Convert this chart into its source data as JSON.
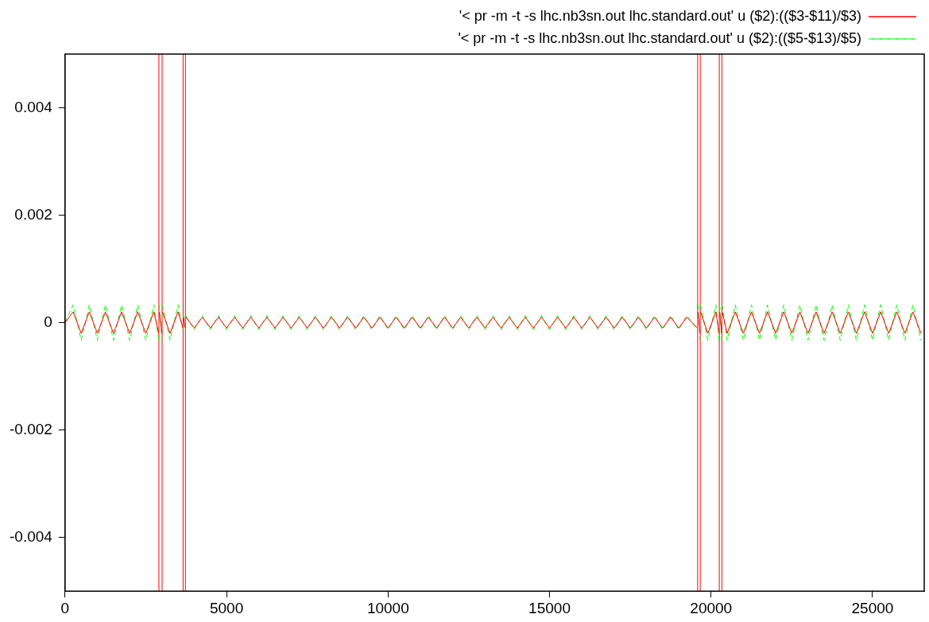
{
  "chart_data": {
    "type": "line",
    "x": [
      0,
      250,
      500,
      750,
      1000,
      1250,
      1500,
      1750,
      2000,
      2250,
      2500,
      2750,
      2900,
      2905,
      2910,
      2915,
      3000,
      3005,
      3010,
      3015,
      3250,
      3500,
      3650,
      3655,
      3660,
      3665,
      3720,
      3725,
      3730,
      3735,
      4000,
      4250,
      4500,
      4750,
      5000,
      5250,
      5500,
      5750,
      6000,
      6250,
      6500,
      6750,
      7000,
      7250,
      7500,
      7750,
      8000,
      8250,
      8500,
      8750,
      9000,
      9250,
      9500,
      9750,
      10000,
      10250,
      10500,
      10750,
      11000,
      11250,
      11500,
      11750,
      12000,
      12250,
      12500,
      12750,
      13000,
      13250,
      13500,
      13750,
      14000,
      14250,
      14500,
      14750,
      15000,
      15250,
      15500,
      15750,
      16000,
      16250,
      16500,
      16750,
      17000,
      17250,
      17500,
      17750,
      18000,
      18250,
      18500,
      18750,
      19000,
      19250,
      19580,
      19585,
      19590,
      19595,
      19660,
      19665,
      19670,
      19675,
      19900,
      20150,
      20250,
      20255,
      20260,
      20265,
      20330,
      20335,
      20340,
      20345,
      20500,
      20750,
      21000,
      21250,
      21500,
      21750,
      22000,
      22250,
      22500,
      22750,
      23000,
      23250,
      23500,
      23750,
      24000,
      24250,
      24500,
      24750,
      25000,
      25250,
      25500,
      25750,
      26000,
      26250,
      26500
    ],
    "series": [
      {
        "name": "'< pr -m -t -s lhc.nb3sn.out lhc.standard.out' u ($2):(($3-$11)/$3)",
        "color": "#ff0000",
        "line_style": "solid",
        "values": [
          0,
          0.0002,
          -0.0002,
          0.0002,
          -0.0002,
          0.0002,
          -0.0002,
          0.0002,
          -0.0002,
          0.0002,
          -0.0002,
          0.0002,
          -0.0002,
          null,
          null,
          0.0002,
          -0.0002,
          null,
          null,
          0.0002,
          -0.0002,
          0.0002,
          -0.0001,
          null,
          null,
          0.0001,
          -0.0001,
          null,
          null,
          0.0001,
          -0.0001,
          0.0001,
          -0.0001,
          0.0001,
          -0.0001,
          0.0001,
          -0.0001,
          0.0001,
          -0.0001,
          0.0001,
          -0.0001,
          0.0001,
          -0.0001,
          0.0001,
          -0.0001,
          0.0001,
          -0.0001,
          0.0001,
          -0.0001,
          0.0001,
          -0.0001,
          0.0001,
          -0.0001,
          0.0001,
          -0.0001,
          0.0001,
          -0.0001,
          0.0001,
          -0.0001,
          0.0001,
          -0.0001,
          0.0001,
          -0.0001,
          0.0001,
          -0.0001,
          0.0001,
          -0.0001,
          0.0001,
          -0.0001,
          0.0001,
          -0.0001,
          0.0001,
          -0.0001,
          0.0001,
          -0.0001,
          0.0001,
          -0.0001,
          0.0001,
          -0.0001,
          0.0001,
          -0.0001,
          0.0001,
          -0.0001,
          0.0001,
          -0.0001,
          0.0001,
          -0.0001,
          0.0001,
          -0.0001,
          0.0001,
          -0.0001,
          0.0001,
          -0.0001,
          null,
          null,
          0.0002,
          -0.0002,
          null,
          null,
          0.0002,
          -0.0002,
          0.0002,
          -0.0002,
          null,
          null,
          0.0002,
          -0.0002,
          null,
          null,
          0.0002,
          -0.0002,
          0.0002,
          -0.0002,
          0.0002,
          -0.0002,
          0.0002,
          -0.0002,
          0.0002,
          -0.0002,
          0.0002,
          -0.0002,
          0.0002,
          -0.0002,
          0.0002,
          -0.0002,
          0.0002,
          -0.0002,
          0.0002,
          -0.0002,
          0.0002,
          -0.0002,
          0.0002,
          -0.0002,
          0.0002,
          -0.0002
        ]
      },
      {
        "name": "'< pr -m -t -s lhc.nb3sn.out lhc.standard.out' u ($2):(($5-$13)/$5)",
        "color": "#00ff00",
        "line_style": "dashed",
        "values": [
          0,
          0.00033,
          -0.00033,
          0.00033,
          -0.00033,
          0.00033,
          -0.00033,
          0.00033,
          -0.00033,
          0.00033,
          -0.00033,
          0.00033,
          -0.00033,
          null,
          null,
          0.00033,
          -0.00033,
          null,
          null,
          0.00033,
          -0.00033,
          0.00033,
          -0.00013,
          null,
          null,
          0.00013,
          -0.00013,
          null,
          null,
          0.00013,
          -0.00013,
          0.00013,
          -0.00013,
          0.00013,
          -0.00013,
          0.00013,
          -0.00013,
          0.00013,
          -0.00013,
          0.00013,
          -0.00013,
          0.00013,
          -0.00013,
          0.00013,
          -0.00013,
          0.00013,
          -0.00013,
          0.00013,
          -0.00013,
          0.00013,
          -0.00013,
          0.00013,
          -0.00013,
          0.00013,
          -0.00013,
          0.00013,
          -0.00013,
          0.00013,
          -0.00013,
          0.00013,
          -0.00013,
          0.00013,
          -0.00013,
          0.00013,
          -0.00013,
          0.00013,
          -0.00013,
          0.00013,
          -0.00013,
          0.00013,
          -0.00013,
          0.00013,
          -0.00013,
          0.00013,
          -0.00013,
          0.00013,
          -0.00013,
          0.00013,
          -0.00013,
          0.00013,
          -0.00013,
          0.00013,
          -0.00013,
          0.00013,
          -0.00013,
          0.00013,
          -0.00013,
          0.00013,
          -0.00013,
          0.00013,
          -0.00013,
          0.00013,
          -0.00013,
          null,
          null,
          0.00033,
          -0.00033,
          null,
          null,
          0.00033,
          -0.00033,
          0.00033,
          -0.00033,
          null,
          null,
          0.00033,
          -0.00033,
          null,
          null,
          0.00033,
          -0.00033,
          0.00033,
          -0.00033,
          0.00033,
          -0.00033,
          0.00033,
          -0.00033,
          0.00033,
          -0.00033,
          0.00033,
          -0.00033,
          0.00033,
          -0.00033,
          0.00033,
          -0.00033,
          0.00033,
          -0.00033,
          0.00033,
          -0.00033,
          0.00033,
          -0.00033,
          0.00033,
          -0.00033,
          0.00033,
          -0.00033
        ]
      }
    ],
    "ref_lines": [
      {
        "axis": "x",
        "value": 2905,
        "color": "#ff0000"
      },
      {
        "axis": "x",
        "value": 3005,
        "color": "#ff0000"
      },
      {
        "axis": "x",
        "value": 3655,
        "color": "#ff0000"
      },
      {
        "axis": "x",
        "value": 3725,
        "color": "#ff0000"
      },
      {
        "axis": "x",
        "value": 19585,
        "color": "#ff0000"
      },
      {
        "axis": "x",
        "value": 19665,
        "color": "#ff0000"
      },
      {
        "axis": "x",
        "value": 20255,
        "color": "#ff0000"
      },
      {
        "axis": "x",
        "value": 20335,
        "color": "#ff0000"
      }
    ],
    "xlim": [
      0,
      26600
    ],
    "xticks": [
      0,
      5000,
      10000,
      15000,
      20000,
      25000
    ],
    "ylim": [
      -0.005,
      0.005
    ],
    "yticks": [
      -0.004,
      -0.002,
      0,
      0.002,
      0.004
    ],
    "grid": false,
    "legend": "top right",
    "marker": "none"
  }
}
